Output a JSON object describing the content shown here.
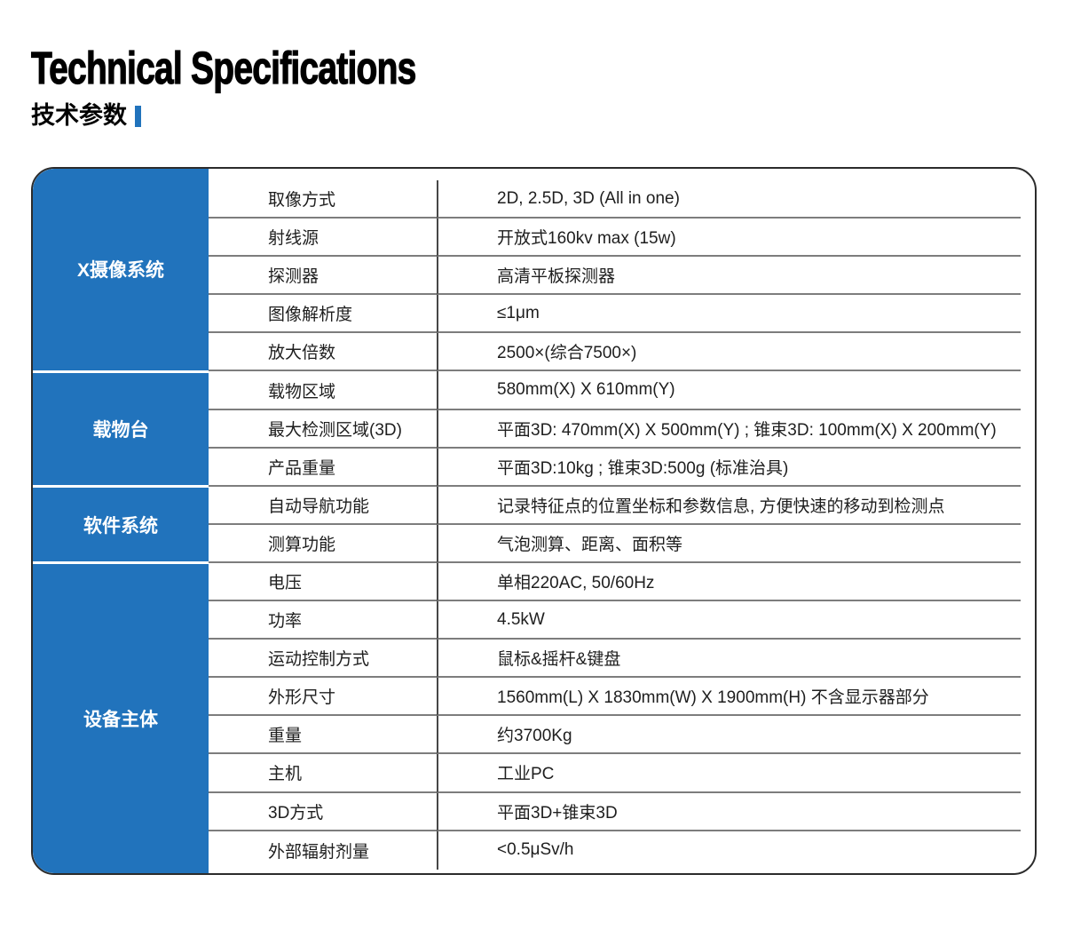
{
  "header": {
    "title": "Technical Specifications",
    "subtitle": "技术参数"
  },
  "colors": {
    "accent_blue": "#2173BC",
    "row_separator_gray": "#7d7d7d",
    "column_divider_gray": "#474747",
    "outer_border_dark": "#2b2b2b"
  },
  "table": {
    "sections": [
      {
        "label": "X摄像系统",
        "rows": [
          {
            "param": "取像方式",
            "value": "2D, 2.5D, 3D (All in one)"
          },
          {
            "param": "射线源",
            "value": "开放式160kv max (15w)"
          },
          {
            "param": "探测器",
            "value": "高清平板探测器"
          },
          {
            "param": "图像解析度",
            "value": "≤1μm"
          },
          {
            "param": "放大倍数",
            "value": "2500×(综合7500×)"
          }
        ]
      },
      {
        "label": "载物台",
        "rows": [
          {
            "param": "载物区域",
            "value": "580mm(X) X 610mm(Y)"
          },
          {
            "param": "最大检测区域(3D)",
            "value": "平面3D: 470mm(X) X 500mm(Y) ; 锥束3D: 100mm(X) X 200mm(Y)"
          },
          {
            "param": "产品重量",
            "value": "平面3D:10kg ; 锥束3D:500g (标准治具)"
          }
        ]
      },
      {
        "label": "软件系统",
        "rows": [
          {
            "param": "自动导航功能",
            "value": "记录特征点的位置坐标和参数信息, 方便快速的移动到检测点"
          },
          {
            "param": "测算功能",
            "value": "气泡测算、距离、面积等"
          }
        ]
      },
      {
        "label": "设备主体",
        "rows": [
          {
            "param": "电压",
            "value": "单相220AC, 50/60Hz"
          },
          {
            "param": "功率",
            "value": "4.5kW"
          },
          {
            "param": "运动控制方式",
            "value": "鼠标&摇杆&键盘"
          },
          {
            "param": "外形尺寸",
            "value": "1560mm(L) X 1830mm(W) X 1900mm(H) 不含显示器部分"
          },
          {
            "param": "重量",
            "value": "约3700Kg"
          },
          {
            "param": "主机",
            "value": "工业PC"
          },
          {
            "param": "3D方式",
            "value": "平面3D+锥束3D"
          },
          {
            "param": "外部辐射剂量",
            "value": "<0.5μSv/h"
          }
        ]
      }
    ]
  }
}
